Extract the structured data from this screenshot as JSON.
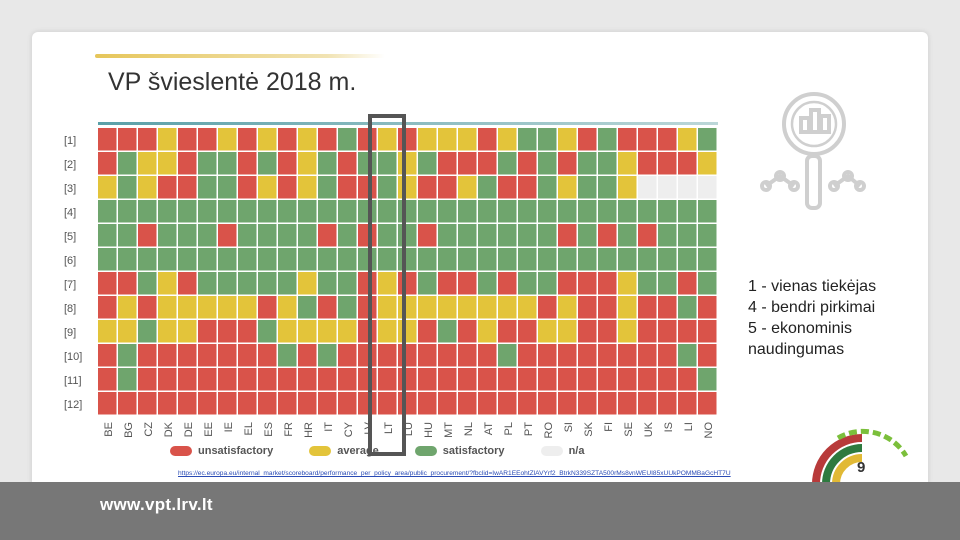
{
  "slide": {
    "title": "VP švieslentė 2018 m.",
    "footer_site": "www.vpt.lrv.lt",
    "page_number": "9",
    "source_url": "https://ec.europa.eu/internal_market/scoreboard/performance_per_policy_area/public_procurement/?fbclid=IwAR1EEohtZlAVYrf2_BtrkN339SZTA500rMs8vnWEUI85xUUkPOMMBaGcHT7U",
    "notes": [
      "1 - vienas tiekėjas",
      "4 - bendri pirkimai",
      "5 - ekonominis",
      "naudingumas"
    ]
  },
  "colors": {
    "unsatisfactory": "#d9534a",
    "average": "#e3c43a",
    "satisfactory": "#6fa56d",
    "na": "#eeeeee",
    "highlight_frame": "#555555"
  },
  "chart_data": {
    "type": "heatmap",
    "rows": [
      "[1]",
      "[2]",
      "[3]",
      "[4]",
      "[5]",
      "[6]",
      "[7]",
      "[8]",
      "[9]",
      "[10]",
      "[11]",
      "[12]"
    ],
    "columns": [
      "BE",
      "BG",
      "CZ",
      "DK",
      "DE",
      "EE",
      "IE",
      "EL",
      "ES",
      "FR",
      "HR",
      "IT",
      "CY",
      "LV",
      "LT",
      "LU",
      "HU",
      "MT",
      "NL",
      "AT",
      "PL",
      "PT",
      "RO",
      "SI",
      "SK",
      "FI",
      "SE",
      "UK",
      "IS",
      "LI",
      "NO"
    ],
    "highlighted_column": "LT",
    "legend": [
      {
        "key": "U",
        "label": "unsatisfactory"
      },
      {
        "key": "A",
        "label": "average"
      },
      {
        "key": "S",
        "label": "satisfactory"
      },
      {
        "key": "N",
        "label": "n/a"
      }
    ],
    "cells": [
      "UUUAUUAUAUAUSUAUAAAUASSAUSUUUAS",
      "USAAUSSUSUASUSSASUUUSUSUSSAUUUA",
      "ASAUUSSUAUASUUSAUUASUUSASSANNNN",
      "SSSSSSSSSSSSSSSSSSSSSSSSSSSSSSS",
      "SSUSSSUSSSSUSUSSUSSSSSSUSUSUSSS",
      "SSSSSSSSSSSSSSSSSSSSSSSSSSSSSSS",
      "UUSAUSSSSSASSUAUSUUSUSSUUUASSUS",
      "UAUAAAAAUASUSUAAAAAAAAUAUUAUUSU",
      "AASAAUUUSAAAAUAAUSUAUUAAUUAUUUU",
      "USUUUUUUUSUSUUUUUUUUSUUUUUUUUSU",
      "USUUUUUUUUUUUUUUUUUUUUUUUUUUUUS",
      "UUUUUUUUUUUUUUUUUUUUUUUUUUUUUUU"
    ]
  }
}
